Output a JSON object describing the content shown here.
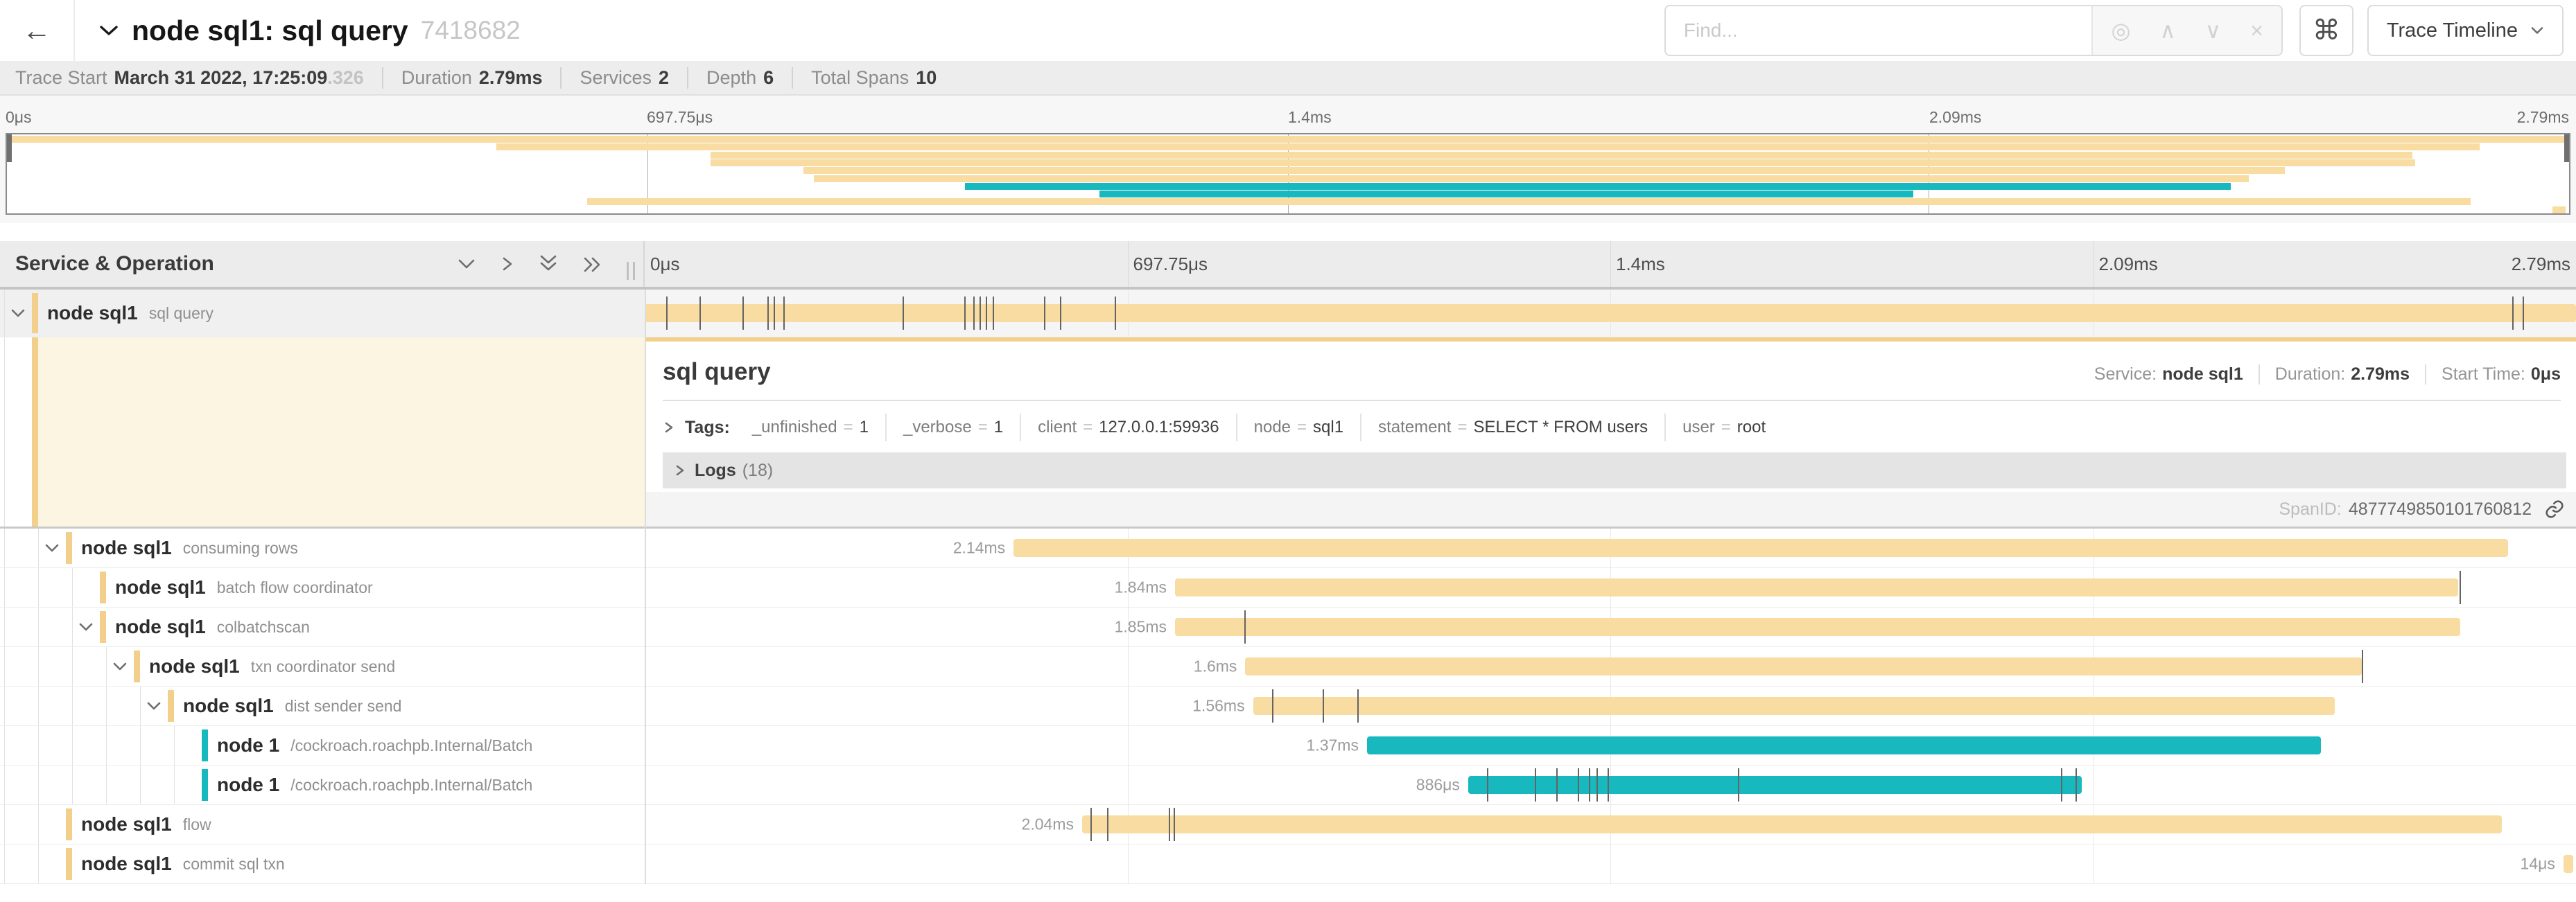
{
  "colors": {
    "tan": "#f8dca1",
    "tan_stripe": "#f2cf8a",
    "teal": "#17b8be",
    "teal_stripe": "#17b8be",
    "detail_cream": "#fcf5e1"
  },
  "header": {
    "back_icon": "←",
    "title": "node sql1: sql query",
    "trace_id": "7418682",
    "find_placeholder": "Find...",
    "icons": {
      "locate": "◎",
      "prev": "∧",
      "next": "∨",
      "clear": "×",
      "shortcut": "⌘"
    },
    "view_selector_label": "Trace Timeline"
  },
  "trace_info": {
    "items": [
      {
        "label": "Trace Start",
        "value": "March 31 2022, 17:25:09",
        "suffix": ".326"
      },
      {
        "label": "Duration",
        "value": "2.79ms",
        "suffix": ""
      },
      {
        "label": "Services",
        "value": "2",
        "suffix": ""
      },
      {
        "label": "Depth",
        "value": "6",
        "suffix": ""
      },
      {
        "label": "Total Spans",
        "value": "10",
        "suffix": ""
      }
    ]
  },
  "minimap": {
    "ticks": [
      "0μs",
      "697.75μs",
      "1.4ms",
      "2.09ms",
      "2.79ms"
    ]
  },
  "timeline": {
    "left_title": "Service & Operation",
    "ticks": [
      "0μs",
      "697.75μs",
      "1.4ms",
      "2.09ms",
      "2.79ms"
    ]
  },
  "spans": [
    {
      "service": "node sql1",
      "operation": "sql query",
      "level": 0,
      "color": "tan",
      "start": 0.0,
      "end": 1.0,
      "duration": "",
      "expandable": true,
      "selected": true,
      "ticks": [
        0.0113,
        0.0284,
        0.0506,
        0.0635,
        0.0668,
        0.0718,
        0.1335,
        0.1655,
        0.1701,
        0.1734,
        0.1766,
        0.1802,
        0.2068,
        0.215,
        0.2434,
        0.967,
        0.9725
      ]
    },
    {
      "service": "node sql1",
      "operation": "consuming rows",
      "level": 1,
      "color": "tan",
      "start": 0.191,
      "end": 0.965,
      "duration": "2.14ms",
      "expandable": true,
      "selected": false,
      "ticks": []
    },
    {
      "service": "node sql1",
      "operation": "batch flow coordinator",
      "level": 2,
      "color": "tan",
      "start": 0.2746,
      "end": 0.9389,
      "duration": "1.84ms",
      "expandable": false,
      "selected": false,
      "ticks": [
        0.9398
      ]
    },
    {
      "service": "node sql1",
      "operation": "colbatchscan",
      "level": 2,
      "color": "tan",
      "start": 0.2746,
      "end": 0.94,
      "duration": "1.85ms",
      "expandable": true,
      "selected": false,
      "ticks": [
        0.3105
      ]
    },
    {
      "service": "node sql1",
      "operation": "txn coordinator send",
      "level": 3,
      "color": "tan",
      "start": 0.311,
      "end": 0.889,
      "duration": "1.6ms",
      "expandable": true,
      "selected": false,
      "ticks": [
        0.889
      ]
    },
    {
      "service": "node sql1",
      "operation": "dist sender send",
      "level": 4,
      "color": "tan",
      "start": 0.315,
      "end": 0.875,
      "duration": "1.56ms",
      "expandable": true,
      "selected": false,
      "ticks": [
        0.325,
        0.351,
        0.369
      ]
    },
    {
      "service": "node 1",
      "operation": "/cockroach.roachpb.Internal/Batch",
      "level": 5,
      "color": "teal",
      "start": 0.374,
      "end": 0.868,
      "duration": "1.37ms",
      "expandable": false,
      "selected": false,
      "ticks": []
    },
    {
      "service": "node 1",
      "operation": "/cockroach.roachpb.Internal/Batch",
      "level": 5,
      "color": "teal",
      "start": 0.4264,
      "end": 0.744,
      "duration": "886μs",
      "expandable": false,
      "selected": false,
      "ticks": [
        0.436,
        0.461,
        0.472,
        0.483,
        0.489,
        0.493,
        0.4985,
        0.566,
        0.7334,
        0.7409
      ]
    },
    {
      "service": "node sql1",
      "operation": "flow",
      "level": 1,
      "color": "tan",
      "start": 0.2265,
      "end": 0.9616,
      "duration": "2.04ms",
      "expandable": false,
      "selected": false,
      "ticks": [
        0.2308,
        0.2394,
        0.2713,
        0.2739
      ]
    },
    {
      "service": "node sql1",
      "operation": "commit sql txn",
      "level": 1,
      "color": "tan",
      "start": 0.9935,
      "end": 0.9986,
      "duration": "14μs",
      "expandable": false,
      "selected": false,
      "ticks": []
    }
  ],
  "detail": {
    "title": "sql query",
    "meta": [
      {
        "label": "Service:",
        "value": "node sql1"
      },
      {
        "label": "Duration:",
        "value": "2.79ms"
      },
      {
        "label": "Start Time:",
        "value": "0μs"
      }
    ],
    "tags_label": "Tags:",
    "tags": [
      {
        "key": "_unfinished",
        "value": "1"
      },
      {
        "key": "_verbose",
        "value": "1"
      },
      {
        "key": "client",
        "value": "127.0.0.1:59936"
      },
      {
        "key": "node",
        "value": "sql1"
      },
      {
        "key": "statement",
        "value": "SELECT * FROM users"
      },
      {
        "key": "user",
        "value": "root"
      }
    ],
    "logs_label": "Logs",
    "logs_count": "(18)",
    "spanid_label": "SpanID:",
    "spanid_value": "4877749850101760812"
  }
}
